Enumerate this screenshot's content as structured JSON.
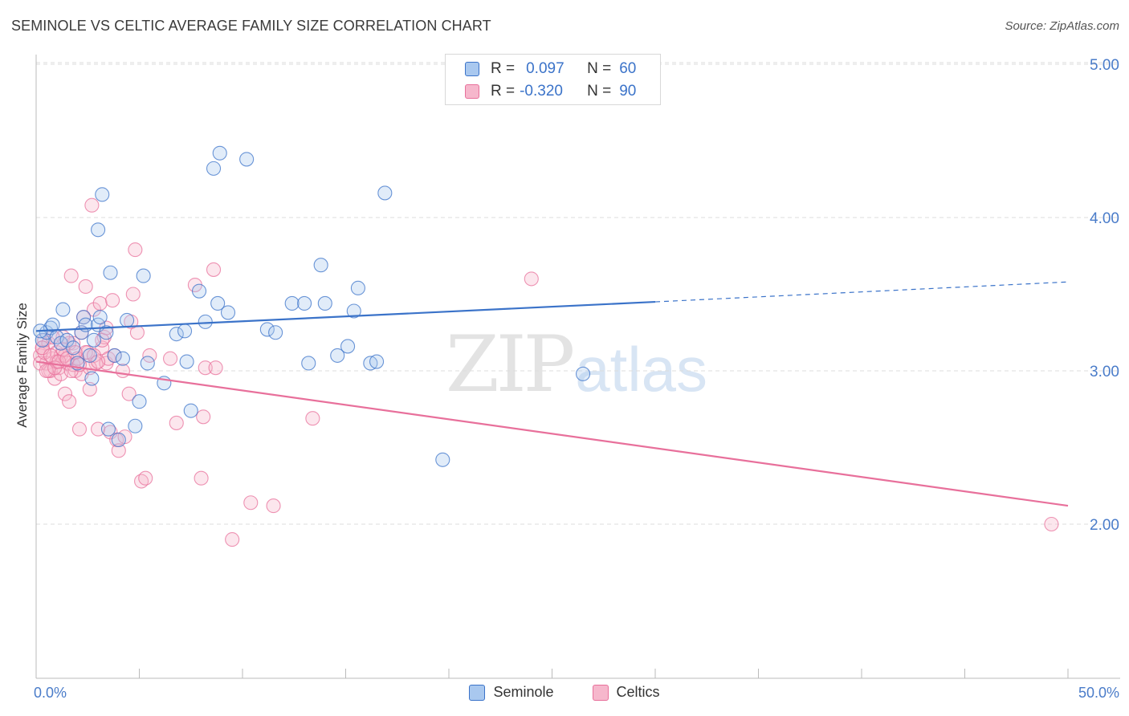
{
  "title": "SEMINOLE VS CELTIC AVERAGE FAMILY SIZE CORRELATION CHART",
  "source": "Source: ZipAtlas.com",
  "watermark": {
    "zip": "ZIP",
    "atlas": "atlas"
  },
  "colors": {
    "blue": "#3b73c9",
    "blue_fill": "#a9c8ef",
    "pink": "#e8709b",
    "pink_fill": "#f6b7cc"
  },
  "legend": {
    "rows": [
      {
        "r_label": "R =",
        "r_value": "0.097",
        "n_label": "N =",
        "n_value": "60"
      },
      {
        "r_label": "R =",
        "r_value": "-0.320",
        "n_label": "N =",
        "n_value": "90"
      }
    ]
  },
  "chart_data": {
    "type": "scatter",
    "title": "SEMINOLE VS CELTIC AVERAGE FAMILY SIZE CORRELATION CHART",
    "xlabel": "",
    "ylabel": "Average Family Size",
    "xlim": [
      0,
      50
    ],
    "ylim": [
      1.0,
      5.15
    ],
    "x_tick_labels": [
      "0.0%",
      "50.0%"
    ],
    "y_ticks": [
      2.0,
      3.0,
      4.0,
      5.0
    ],
    "y_tick_labels": [
      "2.00",
      "3.00",
      "4.00",
      "5.00"
    ],
    "grid": "horizontal dashed",
    "legend_position": "top-center and bottom",
    "series": [
      {
        "name": "Seminole",
        "color": "#3b73c9",
        "trend": {
          "x": [
            0,
            30
          ],
          "y": [
            3.26,
            3.45
          ],
          "dashed_extension_to_x": 50,
          "dashed_end_y": 3.58
        },
        "points": [
          [
            0.3,
            3.2
          ],
          [
            0.5,
            3.25
          ],
          [
            0.7,
            3.28
          ],
          [
            0.8,
            3.3
          ],
          [
            1.0,
            3.22
          ],
          [
            1.2,
            3.18
          ],
          [
            1.3,
            3.4
          ],
          [
            1.5,
            3.2
          ],
          [
            1.8,
            3.15
          ],
          [
            2.0,
            3.05
          ],
          [
            2.2,
            3.25
          ],
          [
            2.3,
            3.35
          ],
          [
            2.4,
            3.3
          ],
          [
            2.6,
            3.1
          ],
          [
            2.7,
            2.95
          ],
          [
            2.8,
            3.2
          ],
          [
            3.0,
            3.3
          ],
          [
            3.1,
            3.35
          ],
          [
            3.2,
            4.15
          ],
          [
            3.0,
            3.92
          ],
          [
            3.4,
            3.25
          ],
          [
            3.5,
            2.62
          ],
          [
            3.6,
            3.64
          ],
          [
            3.8,
            3.1
          ],
          [
            4.0,
            2.55
          ],
          [
            4.2,
            3.08
          ],
          [
            4.4,
            3.33
          ],
          [
            4.8,
            2.64
          ],
          [
            5.0,
            2.8
          ],
          [
            5.2,
            3.62
          ],
          [
            5.4,
            3.05
          ],
          [
            6.2,
            2.92
          ],
          [
            6.8,
            3.24
          ],
          [
            7.2,
            3.26
          ],
          [
            7.3,
            3.06
          ],
          [
            7.5,
            2.74
          ],
          [
            7.9,
            3.52
          ],
          [
            8.2,
            3.32
          ],
          [
            8.6,
            4.32
          ],
          [
            8.8,
            3.44
          ],
          [
            8.9,
            4.42
          ],
          [
            9.3,
            3.38
          ],
          [
            10.2,
            4.38
          ],
          [
            11.2,
            3.27
          ],
          [
            11.6,
            3.25
          ],
          [
            12.4,
            3.44
          ],
          [
            13.0,
            3.44
          ],
          [
            13.2,
            3.05
          ],
          [
            14.0,
            3.44
          ],
          [
            13.8,
            3.69
          ],
          [
            14.6,
            3.1
          ],
          [
            15.1,
            3.16
          ],
          [
            15.4,
            3.39
          ],
          [
            15.6,
            3.54
          ],
          [
            16.2,
            3.05
          ],
          [
            16.5,
            3.06
          ],
          [
            16.9,
            4.16
          ],
          [
            19.7,
            2.42
          ],
          [
            26.5,
            2.98
          ],
          [
            0.2,
            3.26
          ]
        ]
      },
      {
        "name": "Celtics",
        "color": "#e8709b",
        "trend": {
          "x": [
            0,
            50
          ],
          "y": [
            3.06,
            2.12
          ]
        },
        "points": [
          [
            0.2,
            3.1
          ],
          [
            0.3,
            3.15
          ],
          [
            0.4,
            3.2
          ],
          [
            0.5,
            3.05
          ],
          [
            0.6,
            3.18
          ],
          [
            0.7,
            3.0
          ],
          [
            0.8,
            3.08
          ],
          [
            0.9,
            2.95
          ],
          [
            1.0,
            3.12
          ],
          [
            1.1,
            3.02
          ],
          [
            1.2,
            3.1
          ],
          [
            1.3,
            3.22
          ],
          [
            1.4,
            2.85
          ],
          [
            1.5,
            3.05
          ],
          [
            1.6,
            2.8
          ],
          [
            1.7,
            3.62
          ],
          [
            1.8,
            3.18
          ],
          [
            1.9,
            3.0
          ],
          [
            2.0,
            3.08
          ],
          [
            2.1,
            2.62
          ],
          [
            2.2,
            3.25
          ],
          [
            2.3,
            3.35
          ],
          [
            2.4,
            3.55
          ],
          [
            2.5,
            3.12
          ],
          [
            2.6,
            2.88
          ],
          [
            2.7,
            4.08
          ],
          [
            2.8,
            3.4
          ],
          [
            2.9,
            3.05
          ],
          [
            3.0,
            2.62
          ],
          [
            3.1,
            3.44
          ],
          [
            3.2,
            3.15
          ],
          [
            3.3,
            3.22
          ],
          [
            3.4,
            3.05
          ],
          [
            3.5,
            3.08
          ],
          [
            3.6,
            2.6
          ],
          [
            3.7,
            3.46
          ],
          [
            3.8,
            3.1
          ],
          [
            3.9,
            2.55
          ],
          [
            4.0,
            2.48
          ],
          [
            4.2,
            3.0
          ],
          [
            4.3,
            2.57
          ],
          [
            4.5,
            2.85
          ],
          [
            4.7,
            3.5
          ],
          [
            4.8,
            3.79
          ],
          [
            4.9,
            3.25
          ],
          [
            5.1,
            2.28
          ],
          [
            5.3,
            2.3
          ],
          [
            5.5,
            3.1
          ],
          [
            6.5,
            3.08
          ],
          [
            6.8,
            2.66
          ],
          [
            7.7,
            3.56
          ],
          [
            8.2,
            3.02
          ],
          [
            8.6,
            3.66
          ],
          [
            8.0,
            2.3
          ],
          [
            8.1,
            2.7
          ],
          [
            8.7,
            3.02
          ],
          [
            10.4,
            2.14
          ],
          [
            11.5,
            2.12
          ],
          [
            13.4,
            2.69
          ],
          [
            9.5,
            1.9
          ],
          [
            0.2,
            3.05
          ],
          [
            0.4,
            3.12
          ],
          [
            0.6,
            3.0
          ],
          [
            0.8,
            3.22
          ],
          [
            1.0,
            3.06
          ],
          [
            1.2,
            2.98
          ],
          [
            1.4,
            3.1
          ],
          [
            1.6,
            3.18
          ],
          [
            1.8,
            3.04
          ],
          [
            2.0,
            3.08
          ],
          [
            2.2,
            2.98
          ],
          [
            2.4,
            3.12
          ],
          [
            2.6,
            3.02
          ],
          [
            2.8,
            3.1
          ],
          [
            3.0,
            3.06
          ],
          [
            3.2,
            3.2
          ],
          [
            0.3,
            3.15
          ],
          [
            0.5,
            3.0
          ],
          [
            0.7,
            3.1
          ],
          [
            0.9,
            3.02
          ],
          [
            1.1,
            3.06
          ],
          [
            1.3,
            3.14
          ],
          [
            1.5,
            3.08
          ],
          [
            1.7,
            3.0
          ],
          [
            1.9,
            3.12
          ],
          [
            2.1,
            3.04
          ],
          [
            4.6,
            3.32
          ],
          [
            3.4,
            3.28
          ],
          [
            24.0,
            3.6
          ],
          [
            49.2,
            2.0
          ]
        ]
      }
    ]
  },
  "bottom_legend": {
    "items": [
      {
        "label": "Seminole"
      },
      {
        "label": "Celtics"
      }
    ]
  }
}
